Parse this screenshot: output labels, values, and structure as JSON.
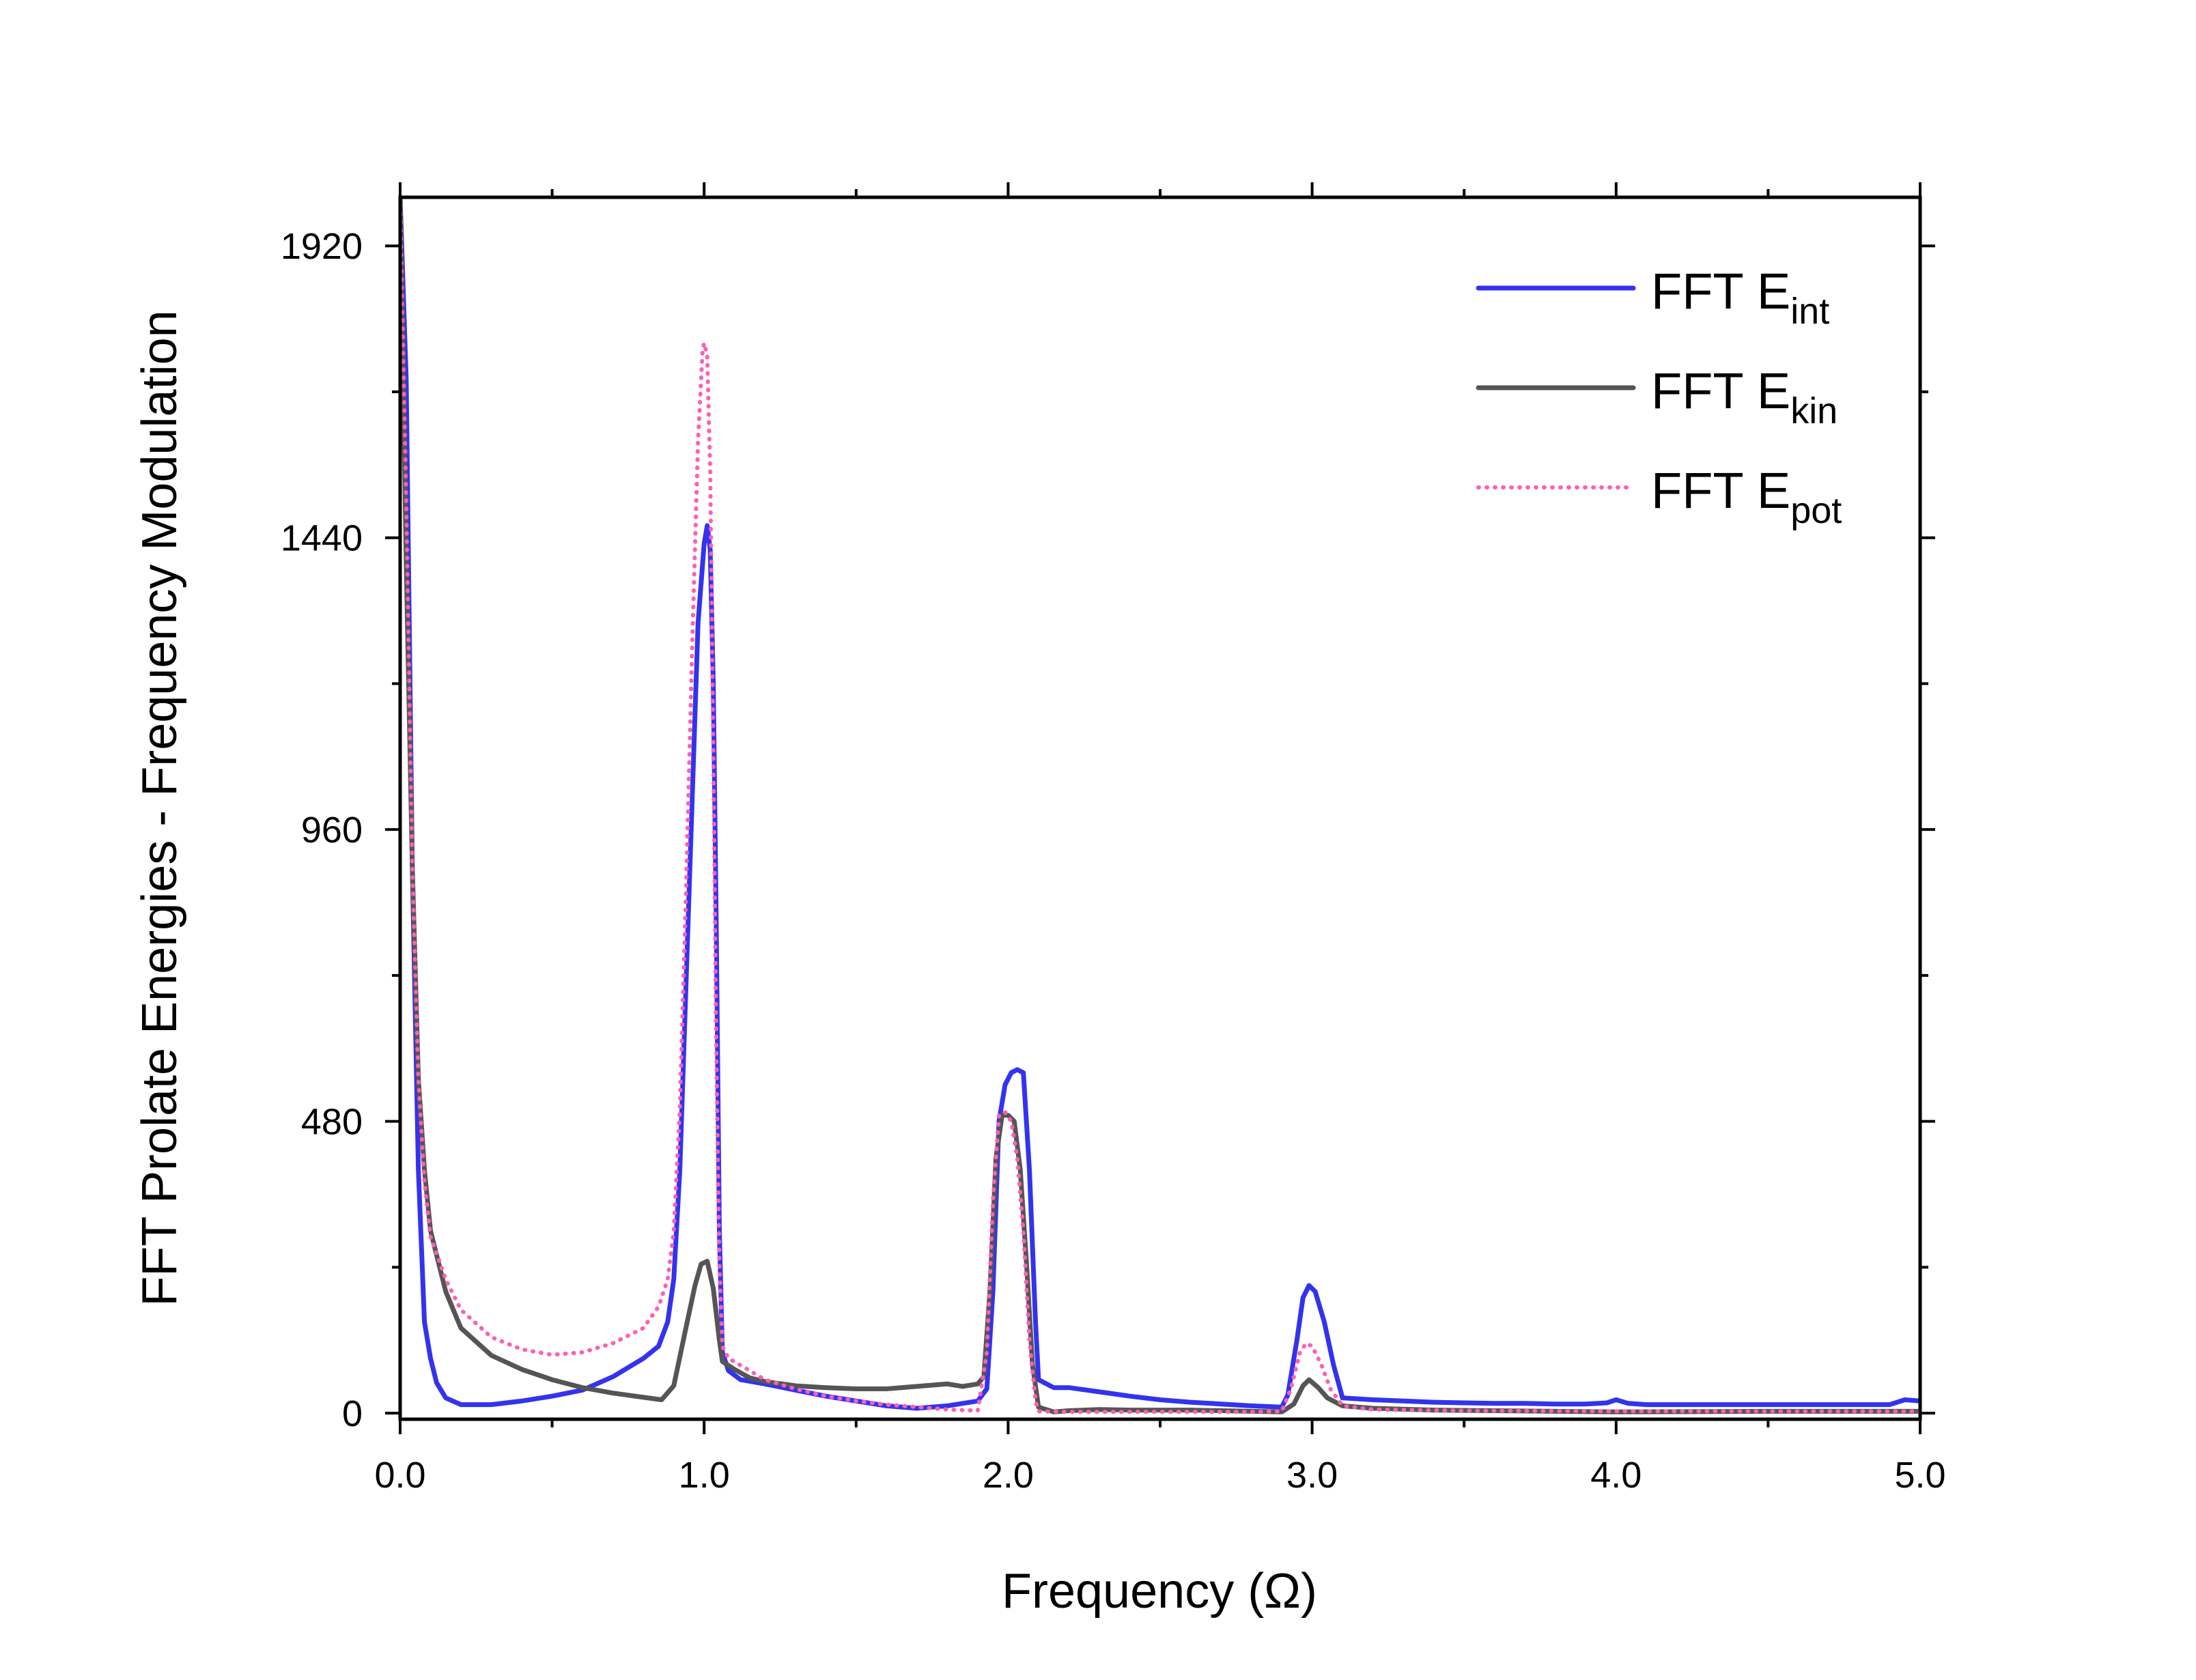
{
  "chart_data": {
    "type": "line",
    "xlabel": "Frequency (Ω)",
    "ylabel": "FFT Prolate Energies - Frequency  Modulation",
    "xlim": [
      0,
      5
    ],
    "ylim": [
      -10,
      2000
    ],
    "x_ticks": [
      0.0,
      1.0,
      2.0,
      3.0,
      4.0,
      5.0
    ],
    "x_tick_labels": [
      "0.0",
      "1.0",
      "2.0",
      "3.0",
      "4.0",
      "5.0"
    ],
    "y_ticks": [
      0,
      480,
      960,
      1440,
      1920
    ],
    "y_tick_labels": [
      "0",
      "480",
      "960",
      "1440",
      "1920"
    ],
    "grid": false,
    "legend_position": "top-right",
    "series": [
      {
        "name": "FFT E",
        "subscript": "int",
        "color": "#3333ee",
        "style": "solid",
        "points": [
          [
            0.0,
            2000
          ],
          [
            0.02,
            1700
          ],
          [
            0.04,
            900
          ],
          [
            0.06,
            400
          ],
          [
            0.08,
            150
          ],
          [
            0.1,
            90
          ],
          [
            0.12,
            50
          ],
          [
            0.15,
            25
          ],
          [
            0.2,
            14
          ],
          [
            0.3,
            14
          ],
          [
            0.4,
            20
          ],
          [
            0.5,
            28
          ],
          [
            0.6,
            38
          ],
          [
            0.7,
            60
          ],
          [
            0.8,
            90
          ],
          [
            0.85,
            110
          ],
          [
            0.88,
            150
          ],
          [
            0.9,
            220
          ],
          [
            0.92,
            400
          ],
          [
            0.94,
            700
          ],
          [
            0.96,
            1000
          ],
          [
            0.98,
            1300
          ],
          [
            1.0,
            1430
          ],
          [
            1.01,
            1460
          ],
          [
            1.02,
            1420
          ],
          [
            1.03,
            1200
          ],
          [
            1.04,
            800
          ],
          [
            1.05,
            300
          ],
          [
            1.06,
            100
          ],
          [
            1.08,
            70
          ],
          [
            1.12,
            55
          ],
          [
            1.2,
            48
          ],
          [
            1.3,
            38
          ],
          [
            1.4,
            28
          ],
          [
            1.5,
            20
          ],
          [
            1.6,
            12
          ],
          [
            1.7,
            8
          ],
          [
            1.8,
            12
          ],
          [
            1.9,
            20
          ],
          [
            1.93,
            40
          ],
          [
            1.95,
            200
          ],
          [
            1.97,
            480
          ],
          [
            1.99,
            540
          ],
          [
            2.01,
            560
          ],
          [
            2.03,
            565
          ],
          [
            2.05,
            560
          ],
          [
            2.07,
            400
          ],
          [
            2.09,
            150
          ],
          [
            2.1,
            55
          ],
          [
            2.15,
            42
          ],
          [
            2.2,
            42
          ],
          [
            2.3,
            35
          ],
          [
            2.4,
            28
          ],
          [
            2.5,
            22
          ],
          [
            2.6,
            18
          ],
          [
            2.7,
            15
          ],
          [
            2.8,
            12
          ],
          [
            2.9,
            10
          ],
          [
            2.92,
            30
          ],
          [
            2.95,
            120
          ],
          [
            2.97,
            190
          ],
          [
            2.99,
            210
          ],
          [
            3.01,
            200
          ],
          [
            3.04,
            150
          ],
          [
            3.07,
            80
          ],
          [
            3.1,
            25
          ],
          [
            3.2,
            22
          ],
          [
            3.3,
            20
          ],
          [
            3.4,
            18
          ],
          [
            3.5,
            17
          ],
          [
            3.6,
            16
          ],
          [
            3.7,
            16
          ],
          [
            3.8,
            15
          ],
          [
            3.9,
            15
          ],
          [
            3.97,
            17
          ],
          [
            4.0,
            22
          ],
          [
            4.04,
            16
          ],
          [
            4.1,
            14
          ],
          [
            4.5,
            14
          ],
          [
            4.9,
            14
          ],
          [
            4.95,
            22
          ],
          [
            5.0,
            20
          ]
        ]
      },
      {
        "name": "FFT E",
        "subscript": "kin",
        "color": "#555555",
        "style": "solid",
        "points": [
          [
            0.0,
            2000
          ],
          [
            0.02,
            1400
          ],
          [
            0.04,
            900
          ],
          [
            0.06,
            550
          ],
          [
            0.08,
            400
          ],
          [
            0.1,
            300
          ],
          [
            0.15,
            200
          ],
          [
            0.2,
            140
          ],
          [
            0.3,
            95
          ],
          [
            0.4,
            72
          ],
          [
            0.5,
            55
          ],
          [
            0.6,
            42
          ],
          [
            0.7,
            33
          ],
          [
            0.8,
            26
          ],
          [
            0.86,
            22
          ],
          [
            0.9,
            45
          ],
          [
            0.94,
            140
          ],
          [
            0.97,
            210
          ],
          [
            0.99,
            245
          ],
          [
            1.01,
            250
          ],
          [
            1.03,
            205
          ],
          [
            1.05,
            120
          ],
          [
            1.06,
            85
          ],
          [
            1.1,
            72
          ],
          [
            1.15,
            58
          ],
          [
            1.2,
            52
          ],
          [
            1.3,
            45
          ],
          [
            1.4,
            42
          ],
          [
            1.5,
            40
          ],
          [
            1.6,
            40
          ],
          [
            1.7,
            44
          ],
          [
            1.8,
            48
          ],
          [
            1.85,
            44
          ],
          [
            1.9,
            48
          ],
          [
            1.92,
            60
          ],
          [
            1.94,
            200
          ],
          [
            1.96,
            420
          ],
          [
            1.98,
            490
          ],
          [
            2.0,
            490
          ],
          [
            2.02,
            480
          ],
          [
            2.04,
            400
          ],
          [
            2.06,
            250
          ],
          [
            2.08,
            80
          ],
          [
            2.1,
            10
          ],
          [
            2.15,
            2
          ],
          [
            2.2,
            4
          ],
          [
            2.3,
            6
          ],
          [
            2.4,
            5
          ],
          [
            2.5,
            5
          ],
          [
            2.6,
            5
          ],
          [
            2.7,
            4
          ],
          [
            2.8,
            3
          ],
          [
            2.9,
            2
          ],
          [
            2.94,
            15
          ],
          [
            2.97,
            45
          ],
          [
            2.99,
            55
          ],
          [
            3.02,
            42
          ],
          [
            3.05,
            25
          ],
          [
            3.1,
            12
          ],
          [
            3.2,
            8
          ],
          [
            3.4,
            5
          ],
          [
            3.6,
            4
          ],
          [
            3.8,
            3
          ],
          [
            4.0,
            2
          ],
          [
            4.5,
            3
          ],
          [
            5.0,
            3
          ]
        ]
      },
      {
        "name": "FFT E",
        "subscript": "pot",
        "color": "#ff5fb4",
        "style": "dotted",
        "points": [
          [
            0.0,
            2000
          ],
          [
            0.02,
            1500
          ],
          [
            0.04,
            900
          ],
          [
            0.06,
            550
          ],
          [
            0.08,
            380
          ],
          [
            0.1,
            290
          ],
          [
            0.15,
            220
          ],
          [
            0.2,
            170
          ],
          [
            0.3,
            125
          ],
          [
            0.4,
            105
          ],
          [
            0.5,
            96
          ],
          [
            0.6,
            100
          ],
          [
            0.7,
            115
          ],
          [
            0.8,
            140
          ],
          [
            0.85,
            175
          ],
          [
            0.88,
            220
          ],
          [
            0.9,
            300
          ],
          [
            0.92,
            500
          ],
          [
            0.94,
            850
          ],
          [
            0.96,
            1250
          ],
          [
            0.98,
            1600
          ],
          [
            0.995,
            1750
          ],
          [
            1.0,
            1760
          ],
          [
            1.01,
            1740
          ],
          [
            1.02,
            1550
          ],
          [
            1.03,
            1100
          ],
          [
            1.04,
            600
          ],
          [
            1.05,
            250
          ],
          [
            1.06,
            110
          ],
          [
            1.08,
            90
          ],
          [
            1.15,
            70
          ],
          [
            1.2,
            55
          ],
          [
            1.3,
            40
          ],
          [
            1.4,
            28
          ],
          [
            1.5,
            20
          ],
          [
            1.6,
            14
          ],
          [
            1.7,
            10
          ],
          [
            1.8,
            6
          ],
          [
            1.9,
            4
          ],
          [
            1.93,
            100
          ],
          [
            1.95,
            350
          ],
          [
            1.97,
            490
          ],
          [
            1.99,
            495
          ],
          [
            2.01,
            480
          ],
          [
            2.03,
            420
          ],
          [
            2.05,
            300
          ],
          [
            2.07,
            120
          ],
          [
            2.09,
            20
          ],
          [
            2.1,
            3
          ],
          [
            2.2,
            2
          ],
          [
            2.5,
            2
          ],
          [
            2.8,
            2
          ],
          [
            2.9,
            3
          ],
          [
            2.93,
            40
          ],
          [
            2.96,
            100
          ],
          [
            2.98,
            115
          ],
          [
            3.0,
            110
          ],
          [
            3.03,
            80
          ],
          [
            3.06,
            40
          ],
          [
            3.1,
            12
          ],
          [
            3.2,
            6
          ],
          [
            3.5,
            4
          ],
          [
            4.0,
            3
          ],
          [
            4.5,
            3
          ],
          [
            5.0,
            3
          ]
        ]
      }
    ]
  }
}
